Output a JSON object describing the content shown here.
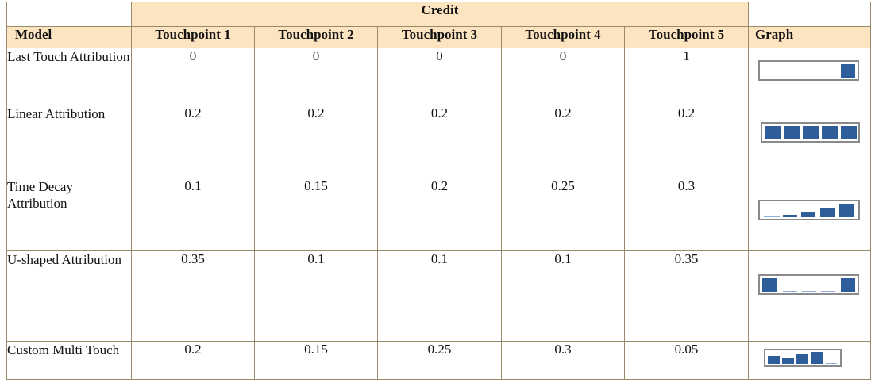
{
  "header": {
    "credit_label": "Credit",
    "model_label": "Model",
    "touchpoint_labels": [
      "Touchpoint 1",
      "Touchpoint 2",
      "Touchpoint 3",
      "Touchpoint 4",
      "Touchpoint 5"
    ],
    "graph_label": "Graph"
  },
  "rows": [
    {
      "model": "Last Touch Attribution",
      "values": [
        "0",
        "0",
        "0",
        "0",
        "1"
      ]
    },
    {
      "model": "Linear Attribution",
      "values": [
        "0.2",
        "0.2",
        "0.2",
        "0.2",
        "0.2"
      ]
    },
    {
      "model": "Time Decay Attribution",
      "values": [
        "0.1",
        "0.15",
        "0.2",
        "0.25",
        "0.3"
      ]
    },
    {
      "model": "U-shaped Attribution",
      "values": [
        "0.35",
        "0.1",
        "0.1",
        "0.1",
        "0.35"
      ]
    },
    {
      "model": "Custom Multi Touch",
      "values": [
        "0.2",
        "0.15",
        "0.25",
        "0.3",
        "0.05"
      ]
    }
  ],
  "colors": {
    "header_background": "#fde4c1",
    "bar_color": "#2f5d99",
    "thin_line_color": "#8fb0dd",
    "box_border": "#8a8a8a"
  }
}
